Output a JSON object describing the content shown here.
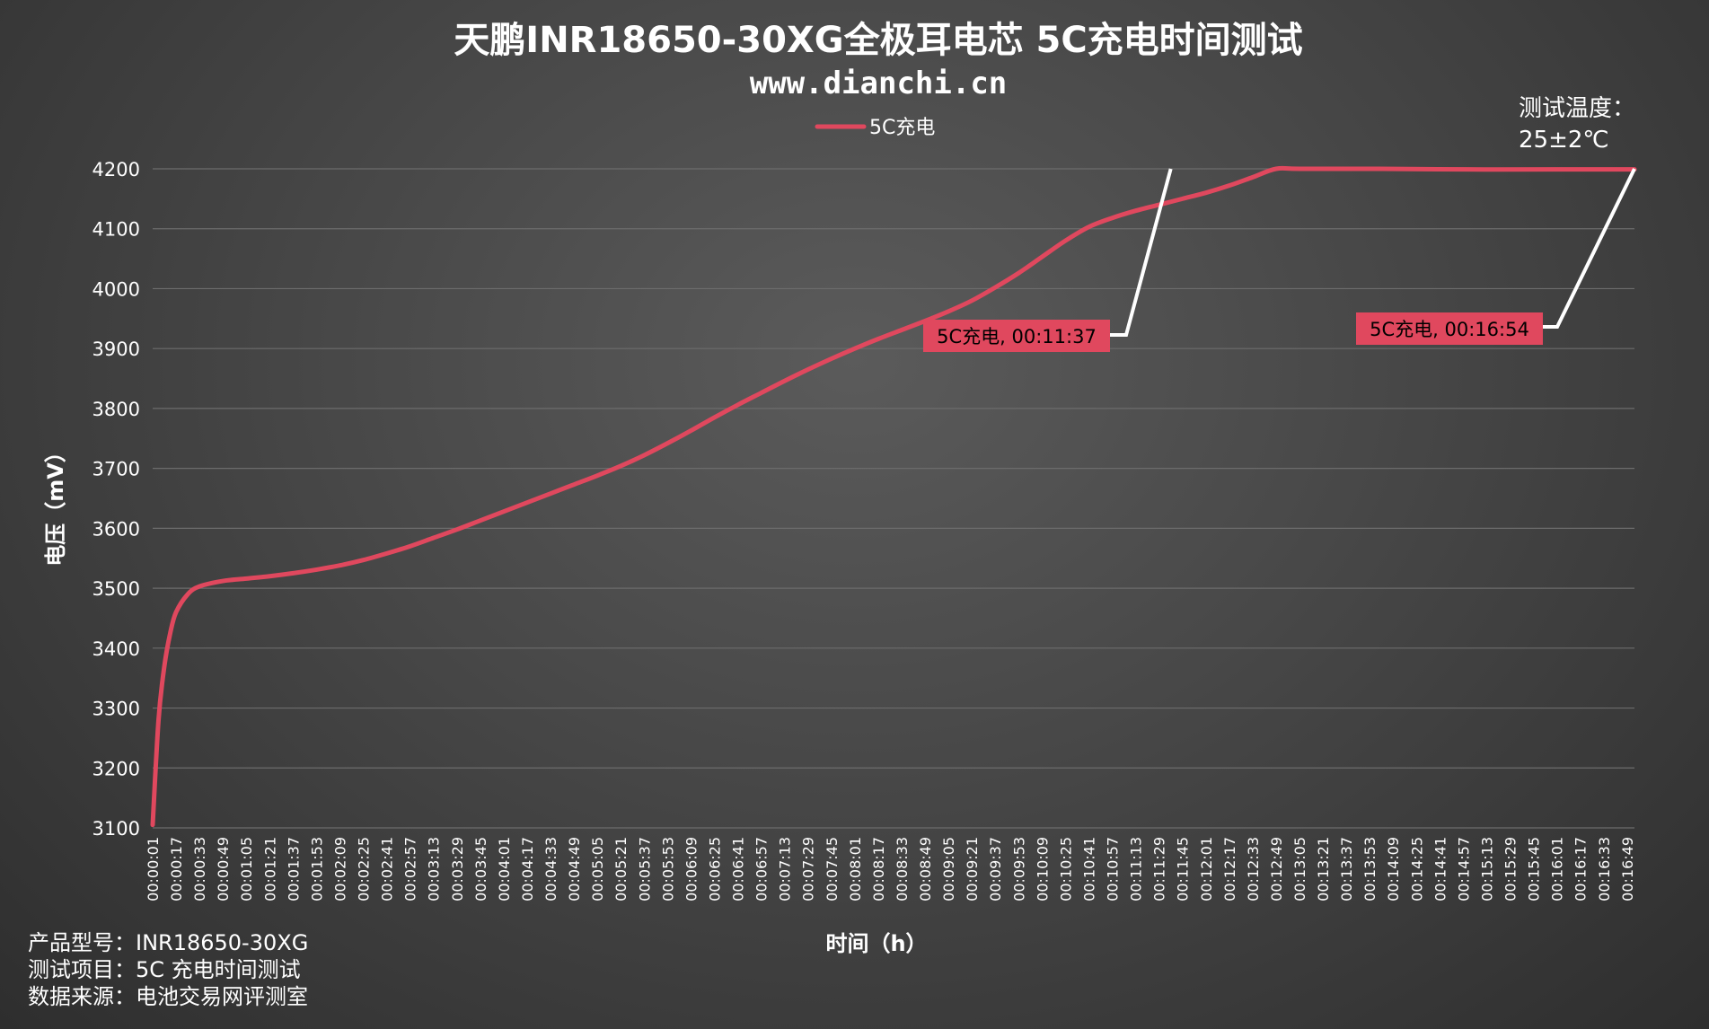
{
  "title": "天鹏INR18650-30XG全极耳电芯 5C充电时间测试",
  "subtitle": "www.dianchi.cn",
  "temperature_note": {
    "label": "测试温度：",
    "value": "25±2℃"
  },
  "footer": [
    "产品型号：INR18650-30XG",
    "测试项目：5C 充电时间测试",
    "数据来源：电池交易网评测室"
  ],
  "colors": {
    "series": "#e0485e",
    "callout_bg": "#e0485e",
    "leader": "#ffffff",
    "grid": "#6c6c6c",
    "text": "#ffffff"
  },
  "chart_data": {
    "type": "line",
    "title": "天鹏INR18650-30XG全极耳电芯 5C充电时间测试",
    "subtitle": "www.dianchi.cn",
    "xlabel": "时间（h）",
    "ylabel": "电压（mV）",
    "ylim": [
      3100,
      4200
    ],
    "yticks": [
      3100,
      3200,
      3300,
      3400,
      3500,
      3600,
      3700,
      3800,
      3900,
      4000,
      4100,
      4200
    ],
    "grid": true,
    "legend": "top-center",
    "x_tick_labels": [
      "00:00:01",
      "00:00:17",
      "00:00:33",
      "00:00:49",
      "00:01:05",
      "00:01:21",
      "00:01:37",
      "00:01:53",
      "00:02:09",
      "00:02:25",
      "00:02:41",
      "00:02:57",
      "00:03:13",
      "00:03:29",
      "00:03:45",
      "00:04:01",
      "00:04:17",
      "00:04:33",
      "00:04:49",
      "00:05:05",
      "00:05:21",
      "00:05:37",
      "00:05:53",
      "00:06:09",
      "00:06:25",
      "00:06:41",
      "00:06:57",
      "00:07:13",
      "00:07:29",
      "00:07:45",
      "00:08:01",
      "00:08:17",
      "00:08:33",
      "00:08:49",
      "00:09:05",
      "00:09:21",
      "00:09:37",
      "00:09:53",
      "00:10:09",
      "00:10:25",
      "00:10:41",
      "00:10:57",
      "00:11:13",
      "00:11:29",
      "00:11:45",
      "00:12:01",
      "00:12:17",
      "00:12:33",
      "00:12:49",
      "00:13:05",
      "00:13:21",
      "00:13:37",
      "00:13:53",
      "00:14:09",
      "00:14:25",
      "00:14:41",
      "00:14:57",
      "00:15:13",
      "00:15:29",
      "00:15:45",
      "00:16:01",
      "00:16:17",
      "00:16:33",
      "00:16:49"
    ],
    "x_range": [
      "00:00:01",
      "00:16:54"
    ],
    "series": [
      {
        "name": "5C充电",
        "points": [
          [
            "00:00:01",
            3105
          ],
          [
            "00:00:05",
            3280
          ],
          [
            "00:00:09",
            3370
          ],
          [
            "00:00:13",
            3425
          ],
          [
            "00:00:17",
            3460
          ],
          [
            "00:00:25",
            3490
          ],
          [
            "00:00:33",
            3503
          ],
          [
            "00:00:49",
            3512
          ],
          [
            "00:01:05",
            3516
          ],
          [
            "00:01:21",
            3520
          ],
          [
            "00:01:37",
            3525
          ],
          [
            "00:01:53",
            3531
          ],
          [
            "00:02:09",
            3538
          ],
          [
            "00:02:25",
            3547
          ],
          [
            "00:02:41",
            3558
          ],
          [
            "00:02:57",
            3570
          ],
          [
            "00:03:13",
            3584
          ],
          [
            "00:03:29",
            3598
          ],
          [
            "00:03:45",
            3613
          ],
          [
            "00:04:01",
            3628
          ],
          [
            "00:04:17",
            3643
          ],
          [
            "00:04:33",
            3658
          ],
          [
            "00:04:49",
            3673
          ],
          [
            "00:05:05",
            3688
          ],
          [
            "00:05:21",
            3704
          ],
          [
            "00:05:37",
            3722
          ],
          [
            "00:05:53",
            3742
          ],
          [
            "00:06:09",
            3763
          ],
          [
            "00:06:25",
            3785
          ],
          [
            "00:06:41",
            3806
          ],
          [
            "00:06:57",
            3826
          ],
          [
            "00:07:13",
            3846
          ],
          [
            "00:07:29",
            3865
          ],
          [
            "00:07:45",
            3883
          ],
          [
            "00:08:01",
            3900
          ],
          [
            "00:08:17",
            3916
          ],
          [
            "00:08:33",
            3931
          ],
          [
            "00:08:49",
            3946
          ],
          [
            "00:09:05",
            3962
          ],
          [
            "00:09:21",
            3980
          ],
          [
            "00:09:37",
            4002
          ],
          [
            "00:09:53",
            4026
          ],
          [
            "00:10:09",
            4053
          ],
          [
            "00:10:25",
            4080
          ],
          [
            "00:10:41",
            4103
          ],
          [
            "00:10:57",
            4118
          ],
          [
            "00:11:13",
            4130
          ],
          [
            "00:11:29",
            4140
          ],
          [
            "00:11:45",
            4150
          ],
          [
            "00:12:01",
            4160
          ],
          [
            "00:12:17",
            4172
          ],
          [
            "00:12:33",
            4186
          ],
          [
            "00:12:49",
            4200
          ],
          [
            "00:13:05",
            4200
          ],
          [
            "00:14:00",
            4200
          ],
          [
            "00:15:00",
            4199
          ],
          [
            "00:16:00",
            4199
          ],
          [
            "00:16:54",
            4199
          ]
        ]
      }
    ],
    "annotations": [
      {
        "label": "5C充电, 00:11:37",
        "x": "00:11:37",
        "y": 4200
      },
      {
        "label": "5C充电, 00:16:54",
        "x": "00:16:54",
        "y": 4200
      }
    ]
  }
}
